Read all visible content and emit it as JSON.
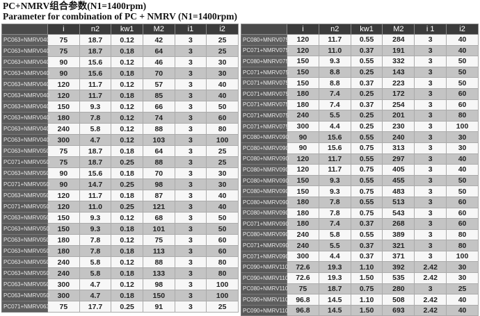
{
  "title_cn": "PC+NMRV组合参数(N1=1400rpm)",
  "title_en": "Parameter for combination of PC + NMRV (N1=1400rpm)",
  "left_table": {
    "headers": [
      "",
      "i",
      "n2",
      "kw1",
      "M2",
      "i1",
      "i2"
    ],
    "rows": [
      [
        "PC063+NMRV040",
        "75",
        "18.7",
        "0.12",
        "42",
        "3",
        "25"
      ],
      [
        "PC063+NMRV040",
        "75",
        "18.7",
        "0.18",
        "64",
        "3",
        "25"
      ],
      [
        "PC063+NMRV040",
        "90",
        "15.6",
        "0.12",
        "46",
        "3",
        "30"
      ],
      [
        "PC063+NMRV040",
        "90",
        "15.6",
        "0.18",
        "70",
        "3",
        "30"
      ],
      [
        "PC063+NMRV040",
        "120",
        "11.7",
        "0.12",
        "57",
        "3",
        "40"
      ],
      [
        "PC063+NMRV040",
        "120",
        "11.7",
        "0.18",
        "85",
        "3",
        "40"
      ],
      [
        "PC063+NMRV040",
        "150",
        "9.3",
        "0.12",
        "66",
        "3",
        "50"
      ],
      [
        "PC063+NMRV040",
        "180",
        "7.8",
        "0.12",
        "74",
        "3",
        "60"
      ],
      [
        "PC063+NMRV040",
        "240",
        "5.8",
        "0.12",
        "88",
        "3",
        "80"
      ],
      [
        "PC063+NMRV040",
        "300",
        "4.7",
        "0.12",
        "103",
        "3",
        "100"
      ],
      [
        "PC063+NMRV050",
        "75",
        "18.7",
        "0.18",
        "64",
        "3",
        "25"
      ],
      [
        "PC071+NMRV050",
        "75",
        "18.7",
        "0.25",
        "88",
        "3",
        "25"
      ],
      [
        "PC063+NMRV050",
        "90",
        "15.6",
        "0.18",
        "70",
        "3",
        "30"
      ],
      [
        "PC071+NMRV050",
        "90",
        "14.7",
        "0.25",
        "98",
        "3",
        "30"
      ],
      [
        "PC063+NMRV050",
        "120",
        "11.7",
        "0.18",
        "87",
        "3",
        "40"
      ],
      [
        "PC071+NMRV050",
        "120",
        "11.0",
        "0.25",
        "121",
        "3",
        "40"
      ],
      [
        "PC063+NMRV050",
        "150",
        "9.3",
        "0.12",
        "68",
        "3",
        "50"
      ],
      [
        "PC063+NMRV050",
        "150",
        "9.3",
        "0.18",
        "101",
        "3",
        "50"
      ],
      [
        "PC063+NMRV050",
        "180",
        "7.8",
        "0.12",
        "75",
        "3",
        "60"
      ],
      [
        "PC063+NMRV050",
        "180",
        "7.8",
        "0.18",
        "113",
        "3",
        "60"
      ],
      [
        "PC063+NMRV050",
        "240",
        "5.8",
        "0.12",
        "88",
        "3",
        "80"
      ],
      [
        "PC063+NMRV050",
        "240",
        "5.8",
        "0.18",
        "133",
        "3",
        "80"
      ],
      [
        "PC063+NMRV050",
        "300",
        "4.7",
        "0.12",
        "98",
        "3",
        "100"
      ],
      [
        "PC063+NMRV050",
        "300",
        "4.7",
        "0.18",
        "150",
        "3",
        "100"
      ],
      [
        "PC071+NMRV063",
        "75",
        "17.7",
        "0.25",
        "91",
        "3",
        "25"
      ]
    ]
  },
  "right_table": {
    "headers": [
      "",
      "i",
      "n2",
      "kw1",
      "M2",
      "i 1",
      "i2"
    ],
    "rows": [
      [
        "PC080+MNRV075",
        "120",
        "11.7",
        "0.55",
        "284",
        "3",
        "40"
      ],
      [
        "PC071+NMRV075",
        "120",
        "11.0",
        "0.37",
        "191",
        "3",
        "40"
      ],
      [
        "PC080+MNRV075",
        "150",
        "9.3",
        "0.55",
        "332",
        "3",
        "50"
      ],
      [
        "PC071+NMRV075",
        "150",
        "8.8",
        "0.25",
        "143",
        "3",
        "50"
      ],
      [
        "PC071+NMRV075",
        "150",
        "8.8",
        "0.37",
        "223",
        "3",
        "50"
      ],
      [
        "PC071+NMRV075",
        "180",
        "7.4",
        "0.25",
        "172",
        "3",
        "60"
      ],
      [
        "PC071+NMRV075",
        "180",
        "7.4",
        "0.37",
        "254",
        "3",
        "60"
      ],
      [
        "PC071+NMRV075",
        "240",
        "5.5",
        "0.25",
        "201",
        "3",
        "80"
      ],
      [
        "PC071+NMRV075",
        "300",
        "4.4",
        "0.25",
        "230",
        "3",
        "100"
      ],
      [
        "PC080+NMRV090",
        "90",
        "15.6",
        "0.55",
        "240",
        "3",
        "30"
      ],
      [
        "PC080+NMRV090",
        "90",
        "15.6",
        "0.75",
        "313",
        "3",
        "30"
      ],
      [
        "PC080+NMRV090",
        "120",
        "11.7",
        "0.55",
        "297",
        "3",
        "40"
      ],
      [
        "PC080+NMRV090",
        "120",
        "11.7",
        "0.75",
        "405",
        "3",
        "40"
      ],
      [
        "PC080+NMRV090",
        "150",
        "9.3",
        "0.55",
        "455",
        "3",
        "50"
      ],
      [
        "PC080+NMRV090",
        "150",
        "9.3",
        "0.75",
        "483",
        "3",
        "50"
      ],
      [
        "PC080+NMRV090",
        "180",
        "7.8",
        "0.55",
        "513",
        "3",
        "60"
      ],
      [
        "PC080+NMRV090",
        "180",
        "7.8",
        "0.75",
        "543",
        "3",
        "60"
      ],
      [
        "PC071+NMRV090",
        "180",
        "7.4",
        "0.37",
        "268",
        "3",
        "60"
      ],
      [
        "PC080+NMRV090",
        "240",
        "5.8",
        "0.55",
        "389",
        "3",
        "80"
      ],
      [
        "PC071+NMRV090",
        "240",
        "5.5",
        "0.37",
        "321",
        "3",
        "80"
      ],
      [
        "PC071+NMRV090",
        "300",
        "4.4",
        "0.37",
        "371",
        "3",
        "100"
      ],
      [
        "PC090+NMRV110",
        "72.6",
        "19.3",
        "1.10",
        "392",
        "2.42",
        "30"
      ],
      [
        "PC090+NMRV110",
        "72.6",
        "19.3",
        "1.50",
        "535",
        "2.42",
        "30"
      ],
      [
        "PC080+NMRV110",
        "75",
        "18.7",
        "0.75",
        "280",
        "3",
        "25"
      ],
      [
        "PC090+NMRV110",
        "96.8",
        "14.5",
        "1.10",
        "508",
        "2.42",
        "40"
      ],
      [
        "PC090+NMRV110",
        "96.8",
        "14.5",
        "1.50",
        "693",
        "2.42",
        "40"
      ]
    ]
  }
}
